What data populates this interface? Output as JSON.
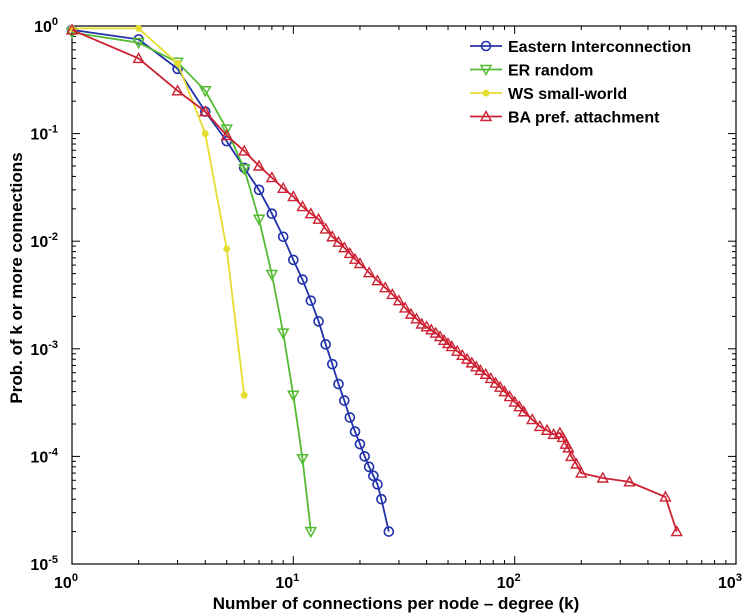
{
  "chart_data": {
    "type": "line",
    "title": "",
    "xlabel": "Number of connections per node – degree (k)",
    "ylabel": "Prob. of k or more connections",
    "xscale": "log",
    "yscale": "log",
    "xlim": [
      1,
      1000
    ],
    "ylim": [
      1e-05,
      1
    ],
    "xticks": [
      {
        "value": 1,
        "mantissa": "10",
        "exp": "0"
      },
      {
        "value": 10,
        "mantissa": "10",
        "exp": "1"
      },
      {
        "value": 100,
        "mantissa": "10",
        "exp": "2"
      },
      {
        "value": 1000,
        "mantissa": "10",
        "exp": "3"
      }
    ],
    "yticks": [
      {
        "value": 1,
        "mantissa": "10",
        "exp": "0"
      },
      {
        "value": 0.1,
        "mantissa": "10",
        "exp": "-1"
      },
      {
        "value": 0.01,
        "mantissa": "10",
        "exp": "-2"
      },
      {
        "value": 0.001,
        "mantissa": "10",
        "exp": "-3"
      },
      {
        "value": 0.0001,
        "mantissa": "10",
        "exp": "-4"
      },
      {
        "value": 1e-05,
        "mantissa": "10",
        "exp": "-5"
      }
    ],
    "grid": false,
    "legend_position": "top-right",
    "series": [
      {
        "name": "Eastern Interconnection",
        "color": "#2233aa",
        "marker": "circle",
        "x": [
          1,
          2,
          3,
          4,
          5,
          6,
          7,
          8,
          9,
          10,
          11,
          12,
          13,
          14,
          15,
          16,
          17,
          18,
          19,
          20,
          21,
          22,
          23,
          24,
          25,
          27
        ],
        "y": [
          0.92,
          0.75,
          0.4,
          0.16,
          0.085,
          0.048,
          0.03,
          0.018,
          0.011,
          0.0067,
          0.0044,
          0.0028,
          0.0018,
          0.0011,
          0.00072,
          0.00047,
          0.00033,
          0.00023,
          0.00017,
          0.00013,
          0.0001,
          8e-05,
          6.6e-05,
          5.5e-05,
          4e-05,
          2e-05
        ]
      },
      {
        "name": "ER random",
        "color": "#55bb33",
        "marker": "triangle-down",
        "x": [
          1,
          2,
          3,
          4,
          5,
          6,
          7,
          8,
          9,
          10,
          11,
          12
        ],
        "y": [
          0.87,
          0.7,
          0.46,
          0.25,
          0.11,
          0.047,
          0.016,
          0.0049,
          0.0014,
          0.00037,
          9.5e-05,
          2e-05
        ]
      },
      {
        "name": "WS small-world",
        "color": "#e6dd33",
        "marker": "dot",
        "x": [
          1,
          2,
          3,
          4,
          5,
          6
        ],
        "y": [
          0.95,
          0.95,
          0.45,
          0.1,
          0.0085,
          0.00037
        ]
      },
      {
        "name": "BA pref. attachment",
        "color": "#cc2233",
        "marker": "triangle-up",
        "x": [
          1,
          2,
          3,
          4,
          5,
          6,
          7,
          8,
          9,
          10,
          11,
          12,
          13,
          14,
          15,
          16,
          17,
          18,
          19,
          20,
          22,
          24,
          26,
          28,
          30,
          32,
          34,
          36,
          38,
          40,
          42,
          44,
          46,
          48,
          50,
          52,
          55,
          58,
          61,
          64,
          67,
          70,
          74,
          78,
          82,
          86,
          90,
          95,
          100,
          105,
          110,
          120,
          130,
          140,
          150,
          160,
          165,
          170,
          175,
          180,
          190,
          200,
          250,
          330,
          480,
          540
        ],
        "y": [
          0.92,
          0.5,
          0.25,
          0.16,
          0.096,
          0.069,
          0.05,
          0.039,
          0.031,
          0.026,
          0.021,
          0.018,
          0.016,
          0.013,
          0.011,
          0.0098,
          0.0087,
          0.0077,
          0.0068,
          0.0062,
          0.0051,
          0.0043,
          0.0037,
          0.0032,
          0.0028,
          0.0024,
          0.0021,
          0.0019,
          0.0017,
          0.0016,
          0.0015,
          0.0014,
          0.0013,
          0.0012,
          0.00112,
          0.00105,
          0.00095,
          0.00087,
          0.0008,
          0.00074,
          0.00068,
          0.00063,
          0.00058,
          0.00053,
          0.00048,
          0.00044,
          0.0004,
          0.00036,
          0.00032,
          0.00029,
          0.00026,
          0.00022,
          0.00019,
          0.000175,
          0.00016,
          0.000165,
          0.00015,
          0.00013,
          0.00012,
          0.0001,
          8.5e-05,
          7e-05,
          6.3e-05,
          5.8e-05,
          4.2e-05,
          2e-05
        ]
      }
    ]
  }
}
